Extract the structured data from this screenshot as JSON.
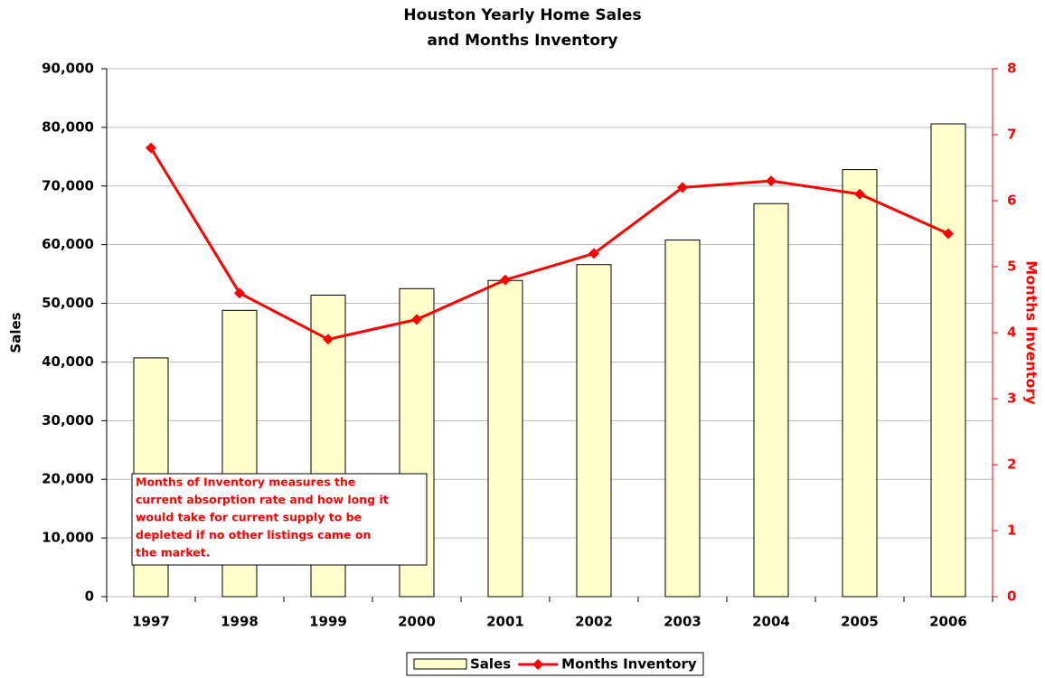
{
  "chart_data": {
    "type": "bar",
    "title": [
      "Houston Yearly Home Sales",
      "and Months Inventory"
    ],
    "y_label": "Sales",
    "y2_label": "Months Inventory",
    "categories": [
      "1997",
      "1998",
      "1999",
      "2000",
      "2001",
      "2002",
      "2003",
      "2004",
      "2005",
      "2006"
    ],
    "series": [
      {
        "name": "Sales",
        "type": "bar",
        "color": "#ffffcc",
        "values": [
          40700,
          48800,
          51400,
          52500,
          53900,
          56600,
          60800,
          67000,
          72800,
          80600
        ]
      },
      {
        "name": "Months Inventory",
        "type": "line",
        "axis": "y2",
        "color": "#ff0000",
        "values": [
          6.8,
          4.6,
          3.9,
          4.2,
          4.8,
          5.2,
          6.2,
          6.3,
          6.1,
          5.5
        ]
      }
    ],
    "ylim": [
      0,
      90000
    ],
    "yticks": [
      0,
      {
        "value": 10000,
        "label": "10,000"
      },
      {
        "value": 20000,
        "label": "20,000"
      },
      {
        "value": 30000,
        "label": "30,000"
      },
      {
        "value": 40000,
        "label": "40,000"
      },
      {
        "value": 50000,
        "label": "50,000"
      },
      {
        "value": 60000,
        "label": "60,000"
      },
      {
        "value": 70000,
        "label": "70,000"
      },
      {
        "value": 80000,
        "label": "80,000"
      },
      {
        "value": 90000,
        "label": "90,000"
      }
    ],
    "y2lim": [
      0,
      8
    ],
    "y2ticks": [
      0,
      1,
      2,
      3,
      4,
      5,
      6,
      7,
      8
    ],
    "grid": true,
    "legend": "bottom",
    "annotation": [
      "Months of Inventory measures the",
      "current absorption rate and how long it",
      "would take for current supply to be",
      "depleted if no other listings came on",
      "the market."
    ]
  }
}
